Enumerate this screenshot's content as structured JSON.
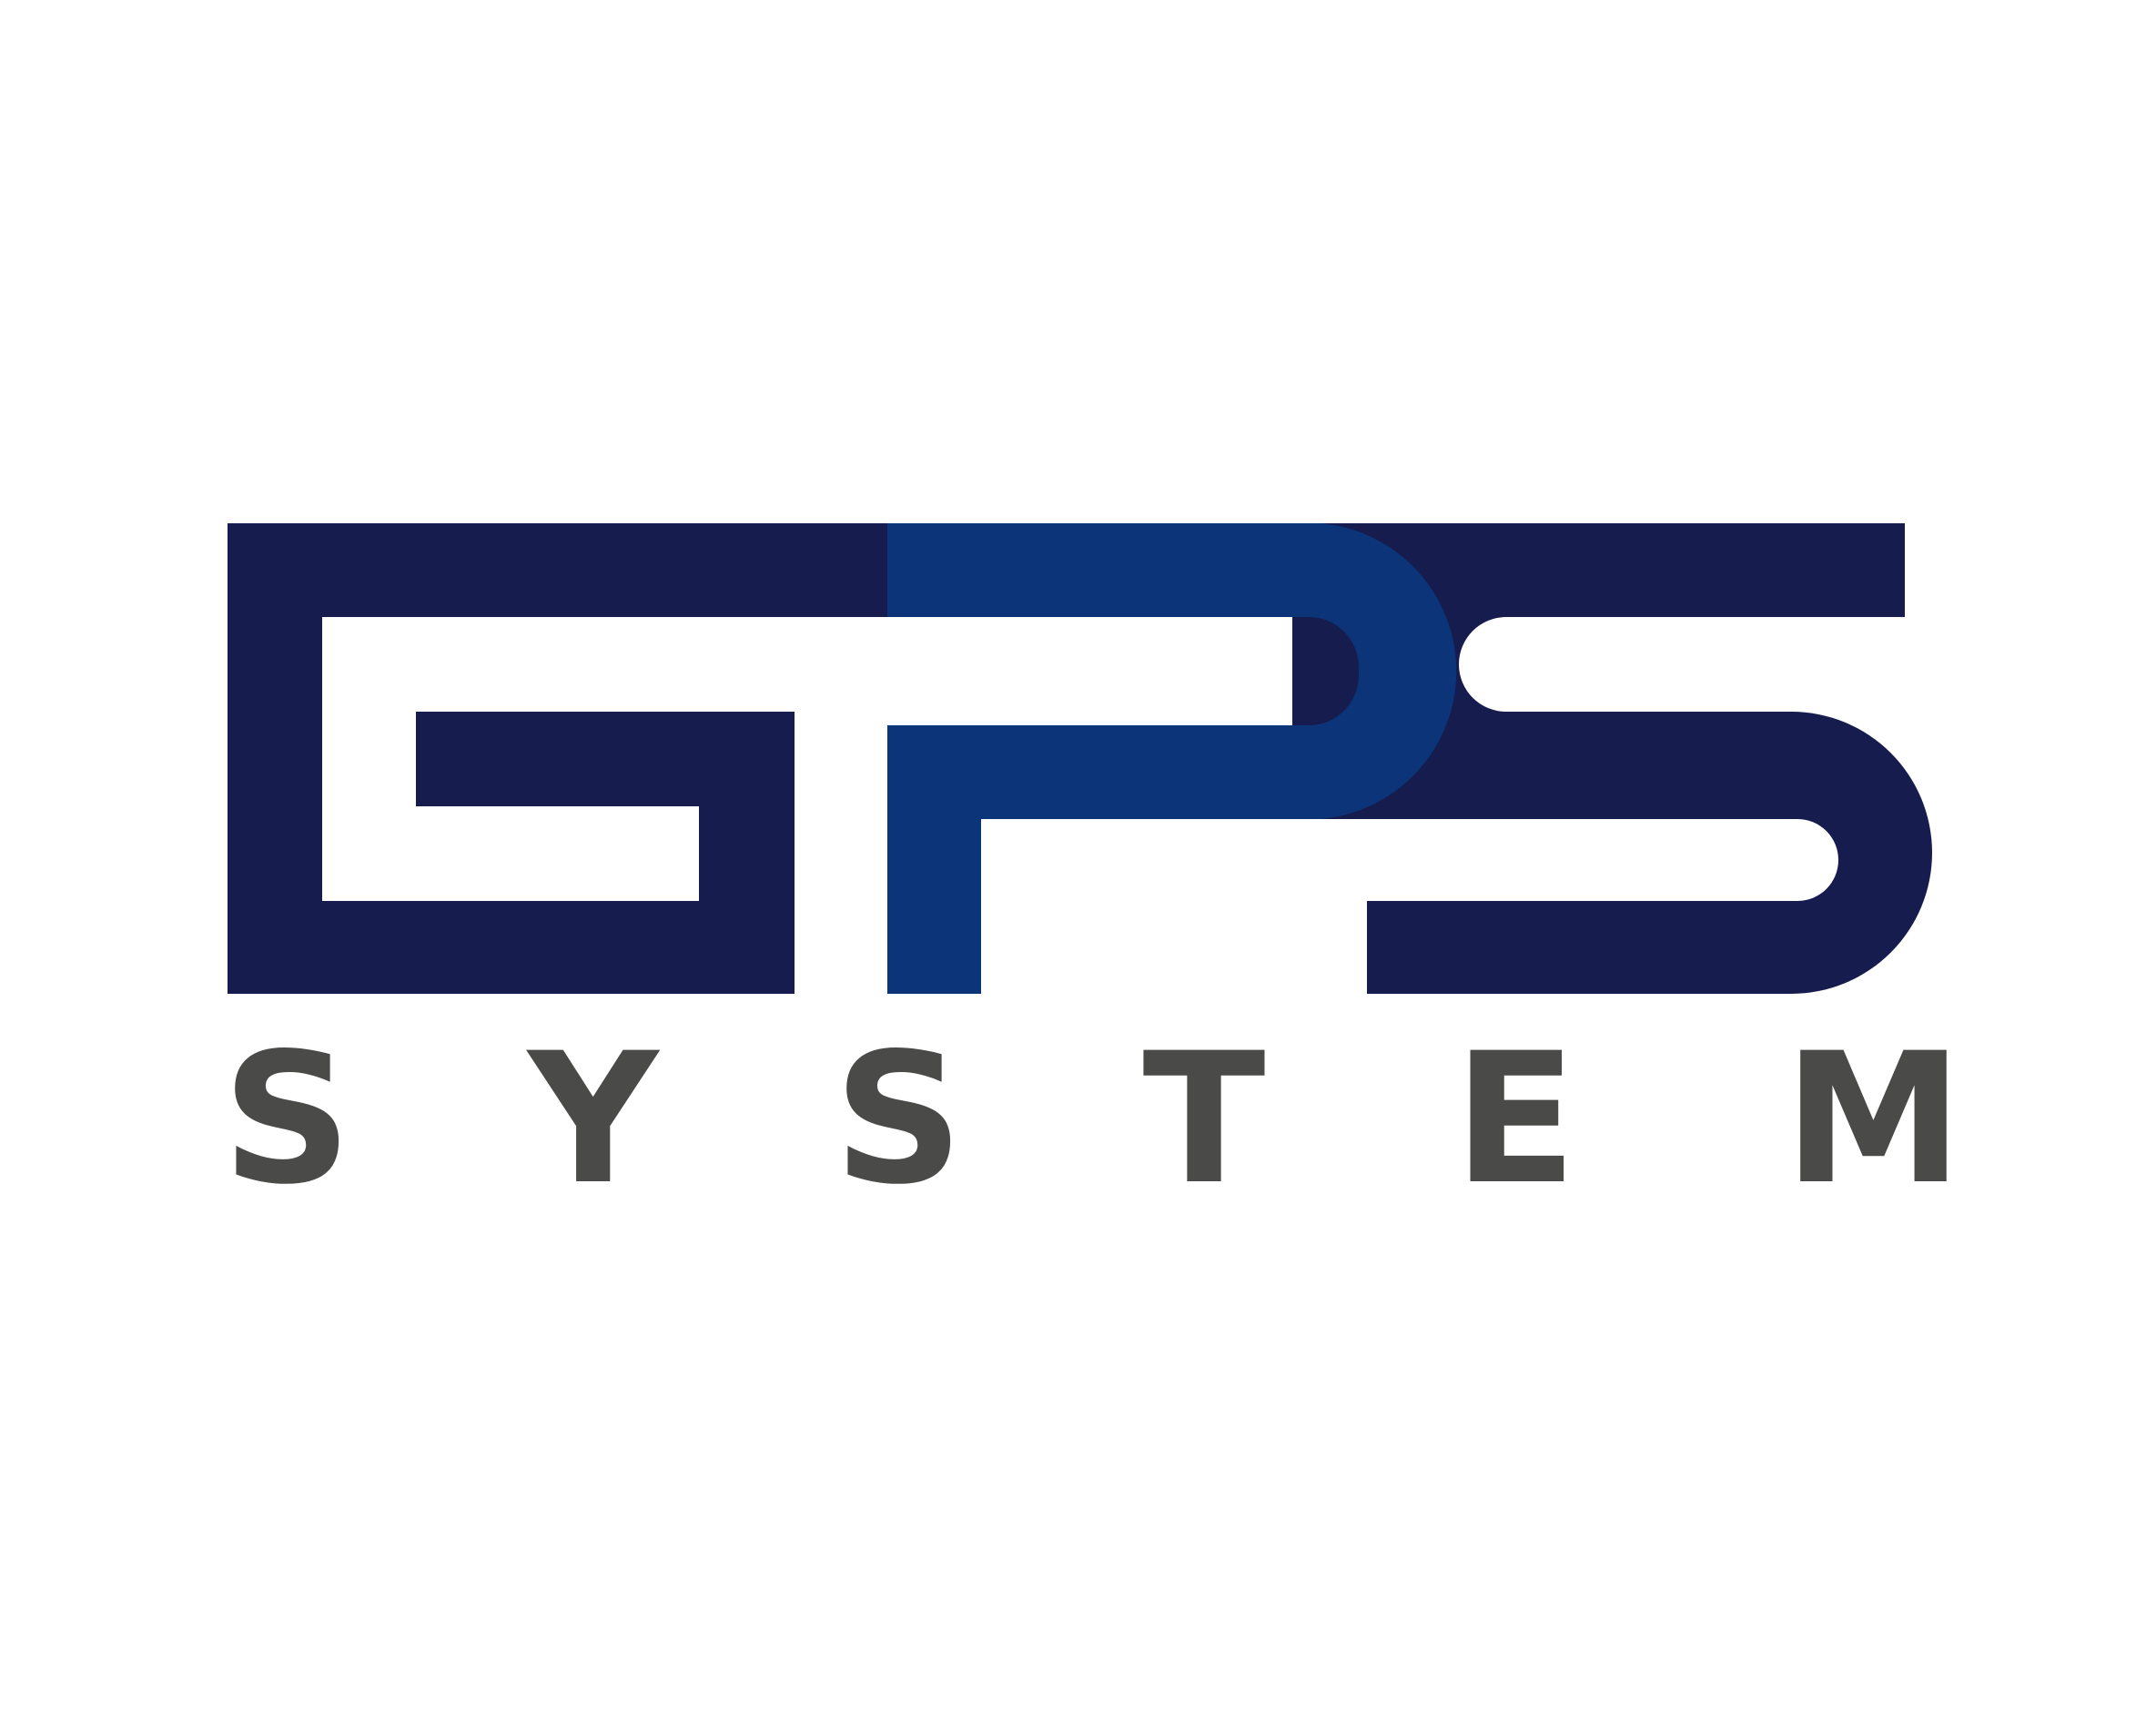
{
  "logo": {
    "monogram": "GPS",
    "wordmark_letters": [
      "S",
      "Y",
      "S",
      "T",
      "E",
      "M"
    ],
    "colors": {
      "background": "#ffffff",
      "navy": "#161c4e",
      "blue": "#0b3578",
      "text_gray": "#4a4a48"
    }
  }
}
